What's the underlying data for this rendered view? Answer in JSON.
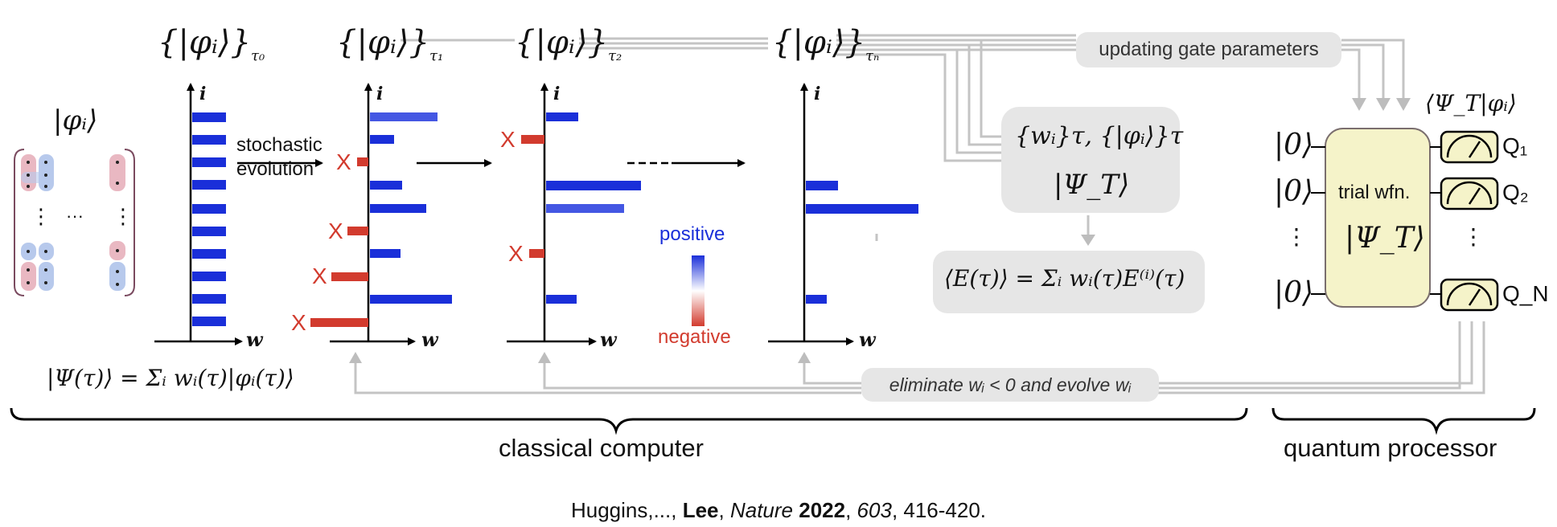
{
  "columns": [
    {
      "set_label": "{|φᵢ⟩}",
      "subscript": "τ₀",
      "axis_y_label": "i",
      "axis_x_label": "w"
    },
    {
      "set_label": "{|φᵢ⟩}",
      "subscript": "τ₁",
      "axis_y_label": "i",
      "axis_x_label": "w"
    },
    {
      "set_label": "{|φᵢ⟩}",
      "subscript": "τ₂",
      "axis_y_label": "i",
      "axis_x_label": "w"
    },
    {
      "set_label": "{|φᵢ⟩}",
      "subscript": "τₙ",
      "axis_y_label": "i",
      "axis_x_label": "w"
    }
  ],
  "state_label": "|φᵢ⟩",
  "ellipsis_h": "···",
  "ellipsis_v": "⋮",
  "wavefunction_eq": "|Ψ(τ)⟩ = Σᵢ wᵢ(τ)|φᵢ(τ)⟩",
  "stochastic_evolution": [
    "stochastic",
    "evolution"
  ],
  "legend": {
    "positive": "positive",
    "negative": "negative",
    "positive_color": "#1a2fd9",
    "negative_color": "#d23b2e"
  },
  "updating_label": "updating gate parameters",
  "eliminate_label": "eliminate wᵢ < 0 and evolve wᵢ",
  "center_box": {
    "line1": "{wᵢ}τ, {|φᵢ⟩}τ",
    "line2": "|Ψ_T⟩"
  },
  "energy_eq": "⟨E(τ)⟩ = Σᵢ wᵢ(τ)E⁽ⁱ⁾(τ)",
  "quantum": {
    "overlap_label": "⟨Ψ_T|φᵢ⟩",
    "ket0": "|0⟩",
    "box_title": "trial wfn.",
    "box_state": "|Ψ_T⟩",
    "qubits": [
      "Q₁",
      "Q₂",
      "Q_N"
    ],
    "box_color": "#f5f3c9"
  },
  "brace_labels": {
    "classical": "classical computer",
    "quantum": "quantum processor"
  },
  "citation": {
    "authors": "Huggins,..., ",
    "lee": "Lee",
    "journal": "Nature",
    "year": "2022",
    "volume": "603",
    "pages": ", 416-420."
  }
}
